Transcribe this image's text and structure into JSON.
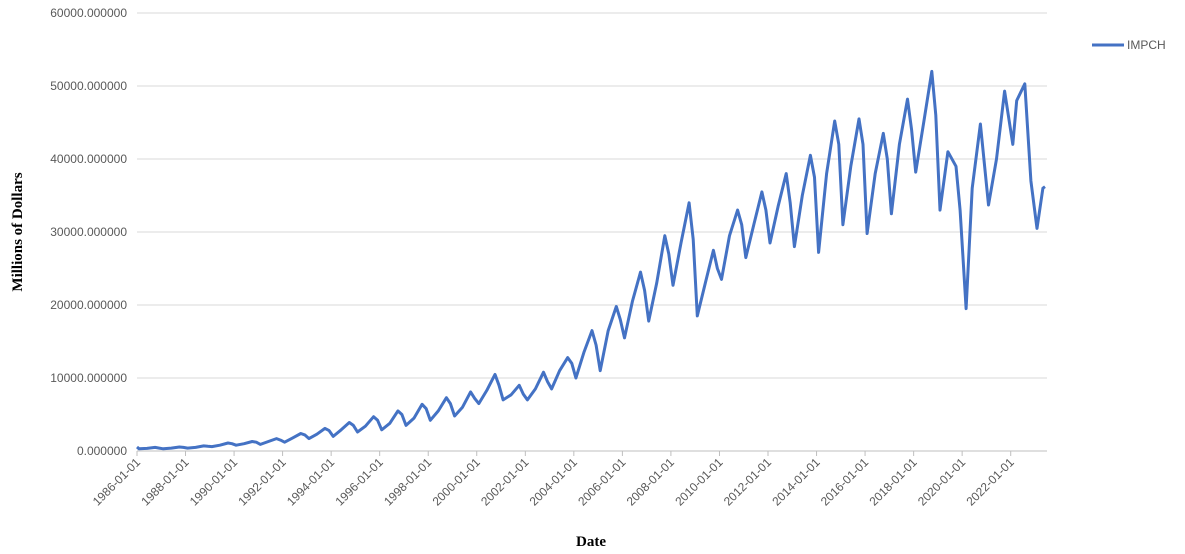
{
  "chart_data": {
    "type": "line",
    "x_label": "Date",
    "y_label": "Millions of Dollars",
    "legend_position": "right",
    "grid": true,
    "xlim": [
      "1986-01-01",
      "2023-07-01"
    ],
    "xticks": [
      "1986-01-01",
      "1988-01-01",
      "1990-01-01",
      "1992-01-01",
      "1994-01-01",
      "1996-01-01",
      "1998-01-01",
      "2000-01-01",
      "2002-01-01",
      "2004-01-01",
      "2006-01-01",
      "2008-01-01",
      "2010-01-01",
      "2012-01-01",
      "2014-01-01",
      "2016-01-01",
      "2018-01-01",
      "2020-01-01",
      "2022-01-01"
    ],
    "ylim": [
      0,
      60000
    ],
    "yticks": [
      {
        "value": 0,
        "label": "0.000000"
      },
      {
        "value": 10000,
        "label": "10000.000000"
      },
      {
        "value": 20000,
        "label": "20000.000000"
      },
      {
        "value": 30000,
        "label": "30000.000000"
      },
      {
        "value": 40000,
        "label": "40000.000000"
      },
      {
        "value": 50000,
        "label": "50000.000000"
      },
      {
        "value": 60000,
        "label": "60000.000000"
      }
    ],
    "x": [
      "1986-01-01",
      "1986-02-01",
      "1986-06-01",
      "1986-10-01",
      "1986-12-01",
      "1987-02-01",
      "1987-06-01",
      "1987-10-01",
      "1987-12-01",
      "1988-02-01",
      "1988-06-01",
      "1988-10-01",
      "1988-12-01",
      "1989-02-01",
      "1989-06-01",
      "1989-10-01",
      "1989-12-01",
      "1990-02-01",
      "1990-06-01",
      "1990-10-01",
      "1990-12-01",
      "1991-02-01",
      "1991-06-01",
      "1991-10-01",
      "1991-12-01",
      "1992-02-01",
      "1992-06-01",
      "1992-10-01",
      "1992-12-01",
      "1993-02-01",
      "1993-06-01",
      "1993-10-01",
      "1993-12-01",
      "1994-02-01",
      "1994-06-01",
      "1994-10-01",
      "1994-12-01",
      "1995-02-01",
      "1995-06-01",
      "1995-10-01",
      "1995-12-01",
      "1996-02-01",
      "1996-06-01",
      "1996-10-01",
      "1996-12-01",
      "1997-02-01",
      "1997-06-01",
      "1997-10-01",
      "1997-12-01",
      "1998-02-01",
      "1998-06-01",
      "1998-10-01",
      "1998-12-01",
      "1999-02-01",
      "1999-06-01",
      "1999-10-01",
      "1999-12-01",
      "2000-02-01",
      "2000-06-01",
      "2000-10-01",
      "2000-12-01",
      "2001-02-01",
      "2001-06-01",
      "2001-10-01",
      "2001-12-01",
      "2002-02-01",
      "2002-06-01",
      "2002-10-01",
      "2002-12-01",
      "2003-02-01",
      "2003-06-01",
      "2003-10-01",
      "2003-12-01",
      "2004-02-01",
      "2004-06-01",
      "2004-10-01",
      "2004-12-01",
      "2005-02-01",
      "2005-06-01",
      "2005-10-01",
      "2005-12-01",
      "2006-02-01",
      "2006-06-01",
      "2006-10-01",
      "2006-12-01",
      "2007-02-01",
      "2007-06-01",
      "2007-10-01",
      "2007-12-01",
      "2008-02-01",
      "2008-06-01",
      "2008-10-01",
      "2008-12-01",
      "2009-02-01",
      "2009-06-01",
      "2009-10-01",
      "2009-12-01",
      "2010-02-01",
      "2010-06-01",
      "2010-10-01",
      "2010-12-01",
      "2011-02-01",
      "2011-06-01",
      "2011-10-01",
      "2011-12-01",
      "2012-02-01",
      "2012-06-01",
      "2012-10-01",
      "2012-12-01",
      "2013-02-01",
      "2013-06-01",
      "2013-10-01",
      "2013-12-01",
      "2014-02-01",
      "2014-06-01",
      "2014-10-01",
      "2014-12-01",
      "2015-02-01",
      "2015-06-01",
      "2015-10-01",
      "2015-12-01",
      "2016-02-01",
      "2016-06-01",
      "2016-10-01",
      "2016-12-01",
      "2017-02-01",
      "2017-06-01",
      "2017-10-01",
      "2017-12-01",
      "2018-02-01",
      "2018-06-01",
      "2018-10-01",
      "2018-12-01",
      "2019-02-01",
      "2019-06-01",
      "2019-10-01",
      "2019-12-01",
      "2020-03-01",
      "2020-06-01",
      "2020-10-01",
      "2021-02-01",
      "2021-06-01",
      "2021-10-01",
      "2022-02-01",
      "2022-04-01",
      "2022-08-01",
      "2022-11-01",
      "2023-02-01",
      "2023-05-01",
      "2023-06-01"
    ],
    "series": [
      {
        "name": "IMPCH",
        "color": "#4472c4",
        "values": [
          550,
          300,
          350,
          500,
          400,
          300,
          400,
          550,
          500,
          400,
          500,
          700,
          650,
          600,
          800,
          1100,
          1000,
          800,
          1000,
          1300,
          1200,
          900,
          1300,
          1700,
          1500,
          1200,
          1800,
          2400,
          2200,
          1700,
          2300,
          3100,
          2800,
          2000,
          2900,
          3900,
          3500,
          2600,
          3400,
          4700,
          4200,
          2900,
          3800,
          5500,
          5000,
          3500,
          4500,
          6400,
          5800,
          4200,
          5500,
          7300,
          6500,
          4800,
          6000,
          8100,
          7200,
          6500,
          8300,
          10500,
          9000,
          7000,
          7700,
          9000,
          7800,
          7000,
          8500,
          10800,
          9500,
          8500,
          11000,
          12800,
          12000,
          10000,
          13500,
          16500,
          14500,
          11000,
          16500,
          19800,
          18000,
          15500,
          20500,
          24500,
          22000,
          17800,
          23000,
          29500,
          27000,
          22700,
          28500,
          34000,
          29000,
          18500,
          23000,
          27500,
          25000,
          23500,
          29500,
          33000,
          31000,
          26500,
          31000,
          35500,
          33000,
          28500,
          33500,
          38000,
          34000,
          28000,
          35000,
          40500,
          37500,
          27200,
          38000,
          45200,
          42000,
          31000,
          39000,
          45500,
          42000,
          29800,
          38000,
          43500,
          40000,
          32500,
          42000,
          48200,
          44000,
          38200,
          45000,
          52000,
          46000,
          33000,
          41000,
          39000,
          33000,
          19500,
          36000,
          44800,
          33700,
          40000,
          49300,
          42000,
          48000,
          50300,
          37000,
          30500,
          36000,
          36200
        ]
      }
    ]
  }
}
